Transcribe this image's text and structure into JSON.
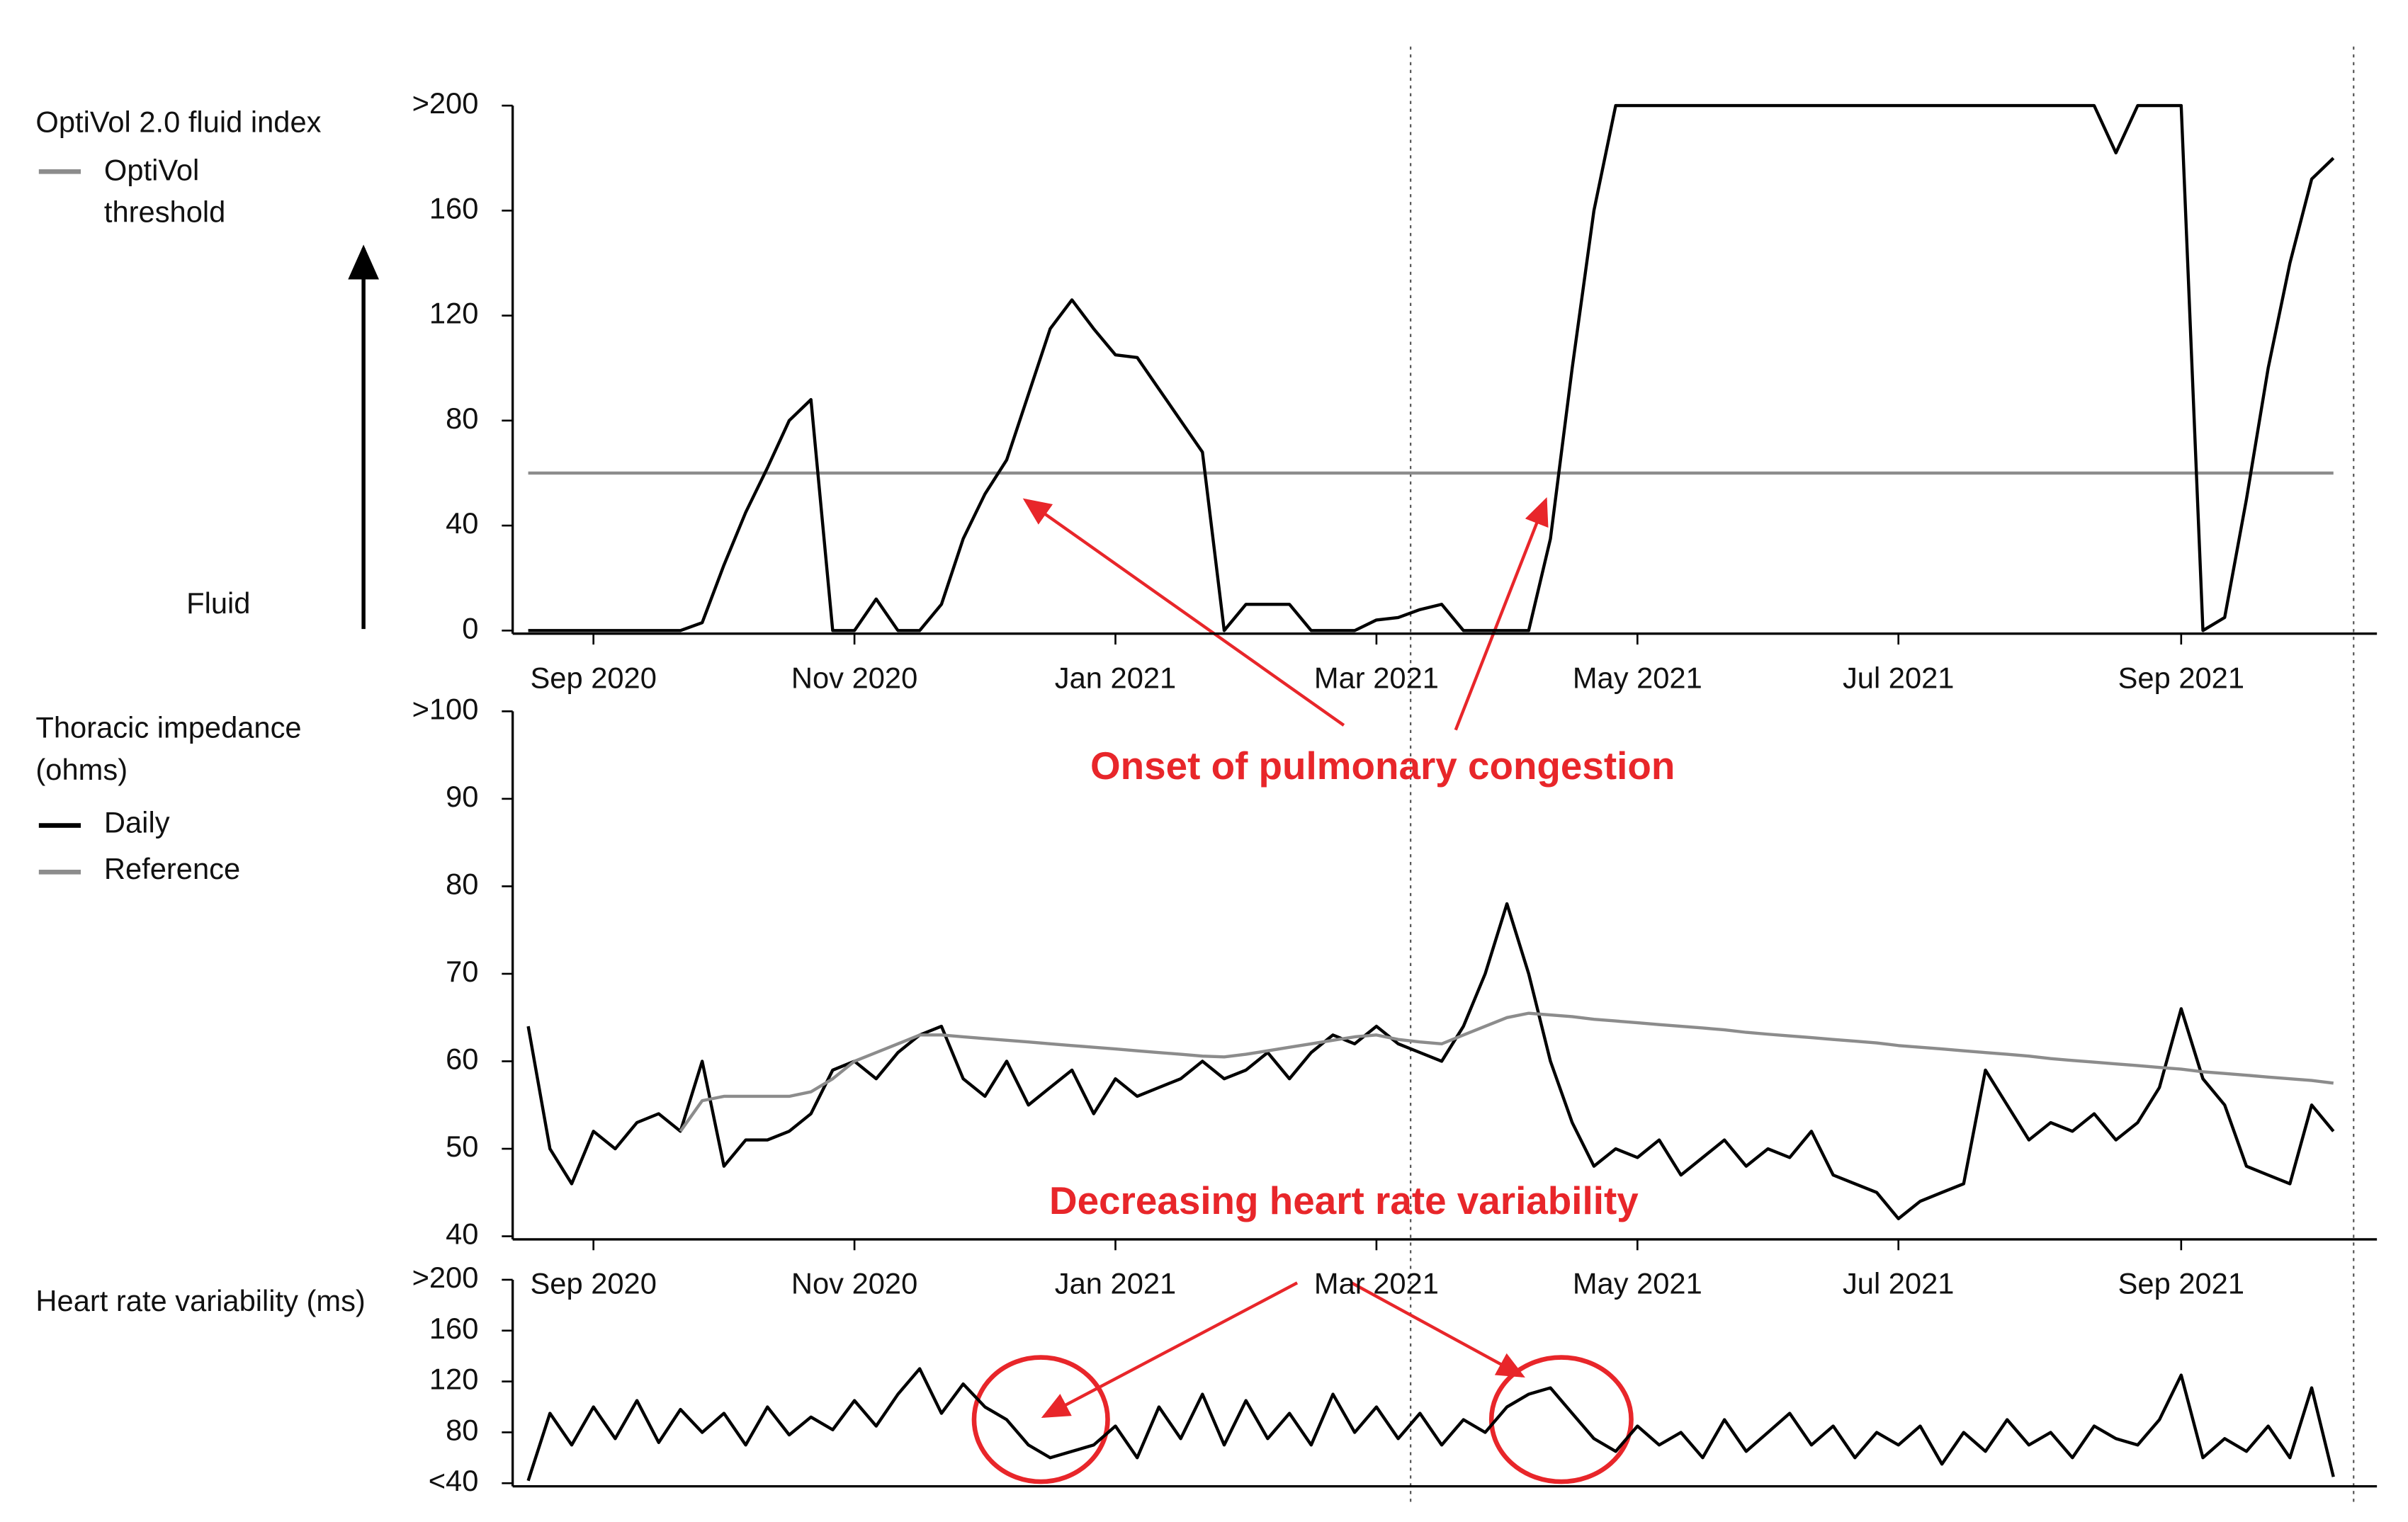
{
  "chart_data": [
    {
      "type": "line",
      "ylabel": "OptiVol 2.0 fluid index",
      "arrow_label": "Fluid",
      "annotation": "Onset of pulmonary congestion",
      "categories": [
        null,
        null,
        null,
        "Sep 2020",
        null,
        null,
        null,
        null,
        null,
        null,
        null,
        null,
        null,
        null,
        null,
        "Nov 2020",
        null,
        null,
        null,
        null,
        null,
        null,
        null,
        null,
        null,
        null,
        null,
        "Jan 2021",
        null,
        null,
        null,
        null,
        null,
        null,
        null,
        null,
        null,
        null,
        null,
        "Mar 2021",
        null,
        null,
        null,
        null,
        null,
        null,
        null,
        null,
        null,
        null,
        null,
        "May 2021",
        null,
        null,
        null,
        null,
        null,
        null,
        null,
        null,
        null,
        null,
        null,
        "Jul 2021",
        null,
        null,
        null,
        null,
        null,
        null,
        null,
        null,
        null,
        null,
        null,
        null,
        "Sep 2021",
        null,
        null,
        null,
        null,
        null,
        null,
        null
      ],
      "values": [
        0,
        0,
        0,
        0,
        0,
        0,
        0,
        0,
        3,
        25,
        45,
        62,
        80,
        88,
        0,
        0,
        12,
        0,
        0,
        10,
        35,
        52,
        65,
        90,
        115,
        126,
        115,
        105,
        104,
        92,
        80,
        68,
        0,
        10,
        10,
        10,
        0,
        0,
        0,
        4,
        5,
        8,
        10,
        0,
        0,
        0,
        0,
        35,
        100,
        160,
        200,
        200,
        200,
        200,
        200,
        200,
        200,
        200,
        200,
        200,
        200,
        200,
        200,
        200,
        200,
        200,
        200,
        200,
        200,
        200,
        200,
        200,
        200,
        182,
        200,
        200,
        200,
        0,
        5,
        50,
        100,
        140,
        172,
        180
      ],
      "color": "#000000",
      "series": [
        {
          "name": "OptiVol threshold",
          "color": "#8c8c8c",
          "values": [
            60,
            60,
            60,
            60,
            60,
            60,
            60,
            60,
            60,
            60,
            60,
            60,
            60,
            60,
            60,
            60,
            60,
            60,
            60,
            60,
            60,
            60,
            60,
            60,
            60,
            60,
            60,
            60,
            60,
            60,
            60,
            60,
            60,
            60,
            60,
            60,
            60,
            60,
            60,
            60,
            60,
            60,
            60,
            60,
            60,
            60,
            60,
            60,
            60,
            60,
            60,
            60,
            60,
            60,
            60,
            60,
            60,
            60,
            60,
            60,
            60,
            60,
            60,
            60,
            60,
            60,
            60,
            60,
            60,
            60,
            60,
            60,
            60,
            60,
            60,
            60,
            60,
            60,
            60,
            60,
            60,
            60,
            60,
            60
          ]
        }
      ],
      "ylim": [
        0,
        200
      ],
      "yticks": [
        0,
        40,
        80,
        120,
        160,
        {
          "value": 200,
          "label": ">200"
        }
      ]
    },
    {
      "type": "line",
      "ylabel": "Thoracic impedance (ohms)",
      "categories": [
        null,
        null,
        null,
        "Sep 2020",
        null,
        null,
        null,
        null,
        null,
        null,
        null,
        null,
        null,
        null,
        null,
        "Nov 2020",
        null,
        null,
        null,
        null,
        null,
        null,
        null,
        null,
        null,
        null,
        null,
        "Jan 2021",
        null,
        null,
        null,
        null,
        null,
        null,
        null,
        null,
        null,
        null,
        null,
        "Mar 2021",
        null,
        null,
        null,
        null,
        null,
        null,
        null,
        null,
        null,
        null,
        null,
        "May 2021",
        null,
        null,
        null,
        null,
        null,
        null,
        null,
        null,
        null,
        null,
        null,
        "Jul 2021",
        null,
        null,
        null,
        null,
        null,
        null,
        null,
        null,
        null,
        null,
        null,
        null,
        "Sep 2021",
        null,
        null,
        null,
        null,
        null,
        null,
        null
      ],
      "series": [
        {
          "name": "Daily",
          "color": "#000000",
          "values": [
            64,
            50,
            46,
            52,
            50,
            53,
            54,
            52,
            60,
            48,
            51,
            51,
            52,
            54,
            59,
            60,
            58,
            61,
            63,
            64,
            58,
            56,
            60,
            55,
            57,
            59,
            54,
            58,
            56,
            57,
            58,
            60,
            58,
            59,
            61,
            58,
            61,
            63,
            62,
            64,
            62,
            61,
            60,
            64,
            70,
            78,
            70,
            60,
            53,
            48,
            50,
            49,
            51,
            47,
            49,
            51,
            48,
            50,
            49,
            52,
            47,
            46,
            45,
            42,
            44,
            45,
            46,
            59,
            55,
            51,
            53,
            52,
            54,
            51,
            53,
            57,
            66,
            58,
            55,
            48,
            47,
            46,
            55,
            52
          ]
        },
        {
          "name": "Reference",
          "color": "#8c8c8c",
          "values": [
            null,
            null,
            null,
            null,
            null,
            null,
            null,
            52,
            55.5,
            56,
            56,
            56,
            56,
            56.5,
            58,
            60,
            61,
            62,
            63,
            63,
            62.8,
            62.6,
            62.4,
            62.2,
            62,
            61.8,
            61.6,
            61.4,
            61.2,
            61,
            60.8,
            60.6,
            60.5,
            60.8,
            61.2,
            61.6,
            62,
            62.4,
            62.8,
            63,
            62.5,
            62.2,
            62,
            63,
            64,
            65,
            65.5,
            65.3,
            65.1,
            64.8,
            64.6,
            64.4,
            64.2,
            64,
            63.8,
            63.6,
            63.3,
            63.1,
            62.9,
            62.7,
            62.5,
            62.3,
            62.1,
            61.8,
            61.6,
            61.4,
            61.2,
            61,
            60.8,
            60.6,
            60.3,
            60.1,
            59.9,
            59.7,
            59.5,
            59.3,
            59.1,
            58.8,
            58.6,
            58.4,
            58.2,
            58,
            57.8,
            57.5
          ]
        }
      ],
      "ylim": [
        40,
        100
      ],
      "yticks": [
        40,
        50,
        60,
        70,
        80,
        90,
        {
          "value": 100,
          "label": ">100"
        }
      ]
    },
    {
      "type": "line",
      "ylabel": "Heart rate variability (ms)",
      "annotation": "Decreasing heart rate variability",
      "values": [
        42,
        95,
        70,
        100,
        75,
        105,
        72,
        98,
        80,
        95,
        70,
        100,
        78,
        92,
        82,
        105,
        85,
        110,
        130,
        95,
        118,
        100,
        90,
        70,
        60,
        65,
        70,
        85,
        60,
        100,
        75,
        110,
        70,
        105,
        75,
        95,
        70,
        110,
        80,
        100,
        75,
        95,
        70,
        90,
        80,
        100,
        110,
        115,
        95,
        75,
        65,
        85,
        70,
        80,
        60,
        90,
        65,
        80,
        95,
        70,
        85,
        60,
        80,
        70,
        85,
        55,
        80,
        65,
        90,
        70,
        80,
        60,
        85,
        75,
        70,
        90,
        125,
        60,
        75,
        65,
        85,
        60,
        115,
        45
      ],
      "color": "#000000",
      "ylim": [
        40,
        200
      ],
      "yticks": [
        {
          "value": 40,
          "label": "<40"
        },
        80,
        120,
        160,
        {
          "value": 200,
          "label": ">200"
        }
      ]
    }
  ]
}
